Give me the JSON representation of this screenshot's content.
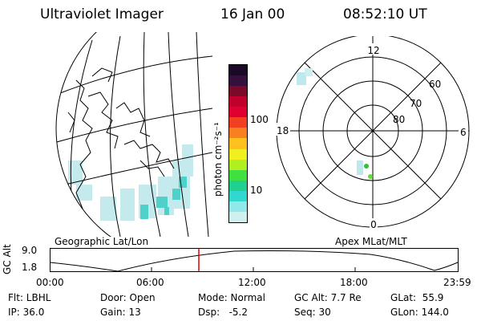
{
  "header": {
    "instrument": "Ultraviolet Imager",
    "date": "16 Jan 00",
    "time": "08:52:10 UT"
  },
  "colorbar": {
    "unit_label": "photon cm⁻²s⁻¹",
    "ticks": [
      "100",
      "10"
    ],
    "colors": [
      "#1a0a28",
      "#35103c",
      "#7a0a2a",
      "#c0002a",
      "#e00030",
      "#f04020",
      "#f88020",
      "#ffc020",
      "#f0f020",
      "#b0f020",
      "#40e040",
      "#20d090",
      "#30d8d0",
      "#90e8e8",
      "#d0f0f0"
    ]
  },
  "geo_panel": {
    "label": "Geographic Lat/Lon"
  },
  "polar_panel": {
    "label": "Apex MLat/MLT",
    "lat_labels": [
      "60",
      "70",
      "80"
    ],
    "mlt_labels": {
      "top": "12",
      "bottom": "0",
      "left": "18",
      "right": "6"
    }
  },
  "altitude_plot": {
    "ylabel": "GC Alt",
    "yticks": [
      "9.0",
      "1.8"
    ],
    "xticks": [
      "00:00",
      "06:00",
      "12:00",
      "18:00",
      "23:59"
    ],
    "marker_color": "#e00000"
  },
  "status": {
    "filter": "Flt: LBHL",
    "ip": "IP: 36.0",
    "door": "Door: Open",
    "gain": "Gain: 13",
    "mode": "Mode: Normal",
    "dsp": "Dsp:   -5.2",
    "gc_alt": "GC Alt: 7.7 Re",
    "seq": "Seq: 30",
    "glat": "GLat:  55.9",
    "glon": "GLon: 144.0"
  }
}
